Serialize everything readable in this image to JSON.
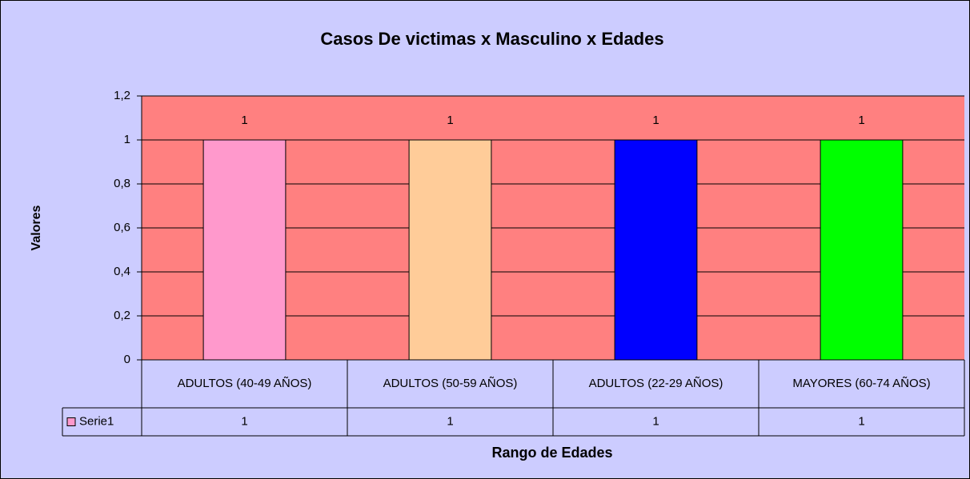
{
  "chart_data": {
    "type": "bar",
    "title": "Casos De victimas x Masculino x Edades",
    "x_label": "Rango de Edades",
    "y_label": "Valores",
    "categories": [
      "ADULTOS (40-49 AÑOS)",
      "ADULTOS (50-59 AÑOS)",
      "ADULTOS (22-29 AÑOS)",
      "MAYORES (60-74 AÑOS)"
    ],
    "series": [
      {
        "name": "Serie1",
        "colors": [
          "#ff99cc",
          "#ffcc99",
          "#0000ff",
          "#00ff00"
        ],
        "values": [
          1,
          1,
          1,
          1
        ]
      }
    ],
    "ylim": [
      0,
      1.2
    ],
    "yticks": [
      0,
      {
        "value": 0.2,
        "label": "0,2"
      },
      {
        "value": 0.4,
        "label": "0,4"
      },
      {
        "value": 0.6,
        "label": "0,6"
      },
      {
        "value": 0.8,
        "label": "0,8"
      },
      1,
      {
        "value": 1.2,
        "label": "1,2"
      }
    ],
    "grid": true,
    "plot_color": "#ff8080",
    "data_table": true
  }
}
